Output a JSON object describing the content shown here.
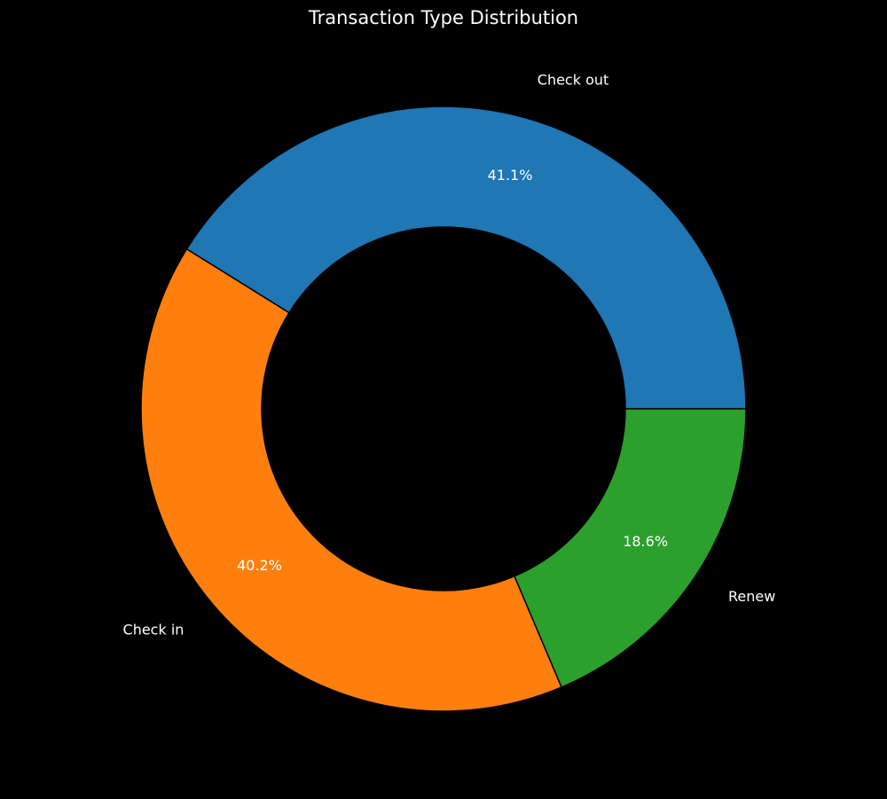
{
  "chart_data": {
    "type": "pie",
    "title": "Transaction Type Distribution",
    "donut": true,
    "start_angle_deg": 0,
    "direction": "counterclockwise",
    "slices": [
      {
        "label": "Check out",
        "value": 41.1,
        "pct_label": "41.1%",
        "color": "#1f77b4"
      },
      {
        "label": "Check in",
        "value": 40.2,
        "pct_label": "40.2%",
        "color": "#ff7f0e"
      },
      {
        "label": "Renew",
        "value": 18.6,
        "pct_label": "18.6%",
        "color": "#2ca02c"
      }
    ]
  },
  "colors": {
    "background": "#000000",
    "text": "#ffffff",
    "edge": "#000000"
  }
}
